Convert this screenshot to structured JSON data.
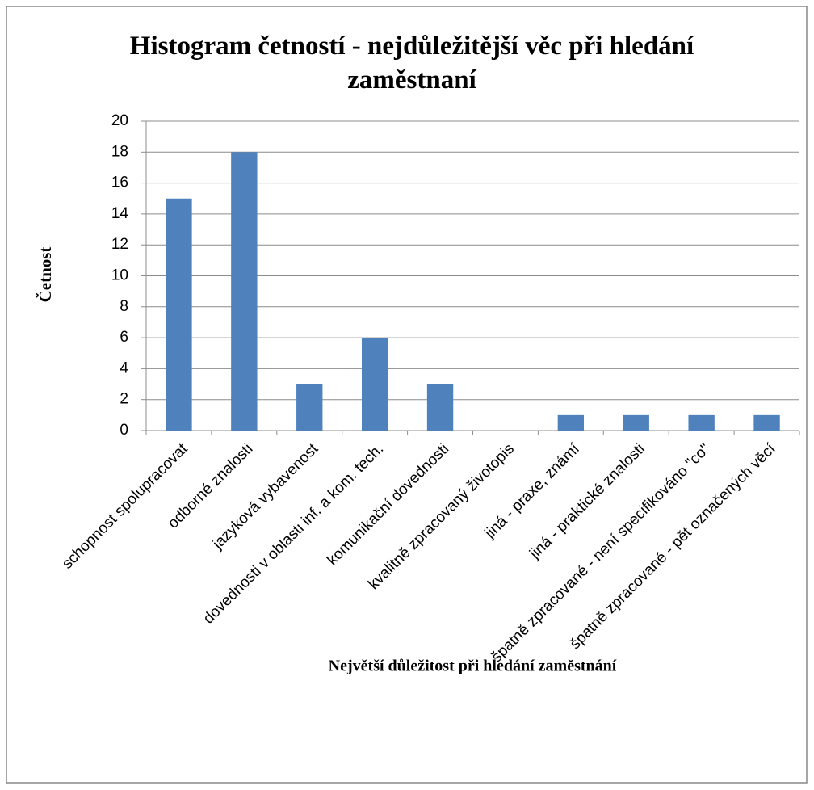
{
  "chart_data": {
    "type": "bar",
    "title": "Histogram četností - nejdůležitější věc při hledání zaměstnaní",
    "x_label": "Největší důležitost při hledání zaměstnání",
    "y_label": "Četnost",
    "categories": [
      "schopnost spolupracovat",
      "odborné znalosti",
      "jazyková vybavenost",
      "dovednosti v oblasti inf. a kom. tech.",
      "komunikační dovednosti",
      "kvalitně zpracovaný životopis",
      "jiná - praxe, známí",
      "jiná - praktické znalosti",
      "špatně zpracované - není specifikováno \"co\"",
      "špatně zpracované - pět označených věcí"
    ],
    "values": [
      15,
      18,
      3,
      6,
      3,
      0,
      1,
      1,
      1,
      1
    ],
    "color": "#4f81bd",
    "ylim": [
      0,
      20
    ],
    "yticks": [
      0,
      2,
      4,
      6,
      8,
      10,
      12,
      14,
      16,
      18,
      20
    ],
    "grid": true
  }
}
